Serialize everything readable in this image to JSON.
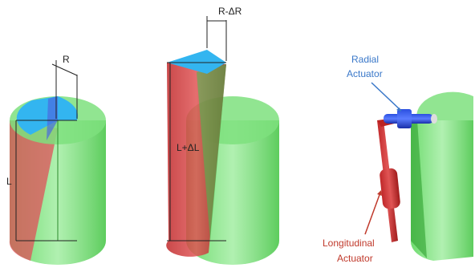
{
  "labels": {
    "radius": "R",
    "length": "L",
    "reduced_radius": "R-ΔR",
    "extended_length": "L+ΔL"
  },
  "radial_actuator": [
    "Radial",
    "Actuator"
  ],
  "longitudinal_actuator": [
    "Longitudinal",
    "Actuator"
  ]
}
